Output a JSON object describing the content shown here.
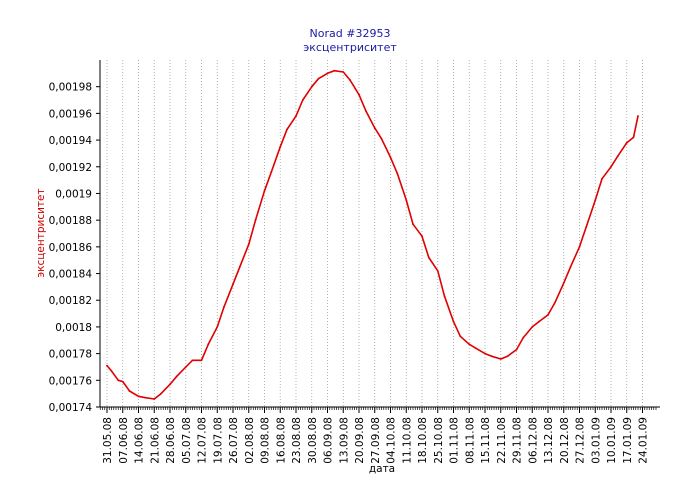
{
  "chart_data": {
    "type": "line",
    "title": "Norad #32953",
    "subtitle": "эксцентриситет",
    "xlabel": "дата",
    "ylabel": "эксцентриситет",
    "ylim": [
      0.00174,
      0.002
    ],
    "y_ticks": [
      0.00174,
      0.00176,
      0.00178,
      0.0018,
      0.00182,
      0.00184,
      0.00186,
      0.00188,
      0.0019,
      0.00192,
      0.00194,
      0.00196,
      0.00198
    ],
    "y_tick_labels": [
      "0,00174",
      "0,00176",
      "0,00178",
      "0,0018",
      "0,00182",
      "0,00184",
      "0,00186",
      "0,00188",
      "0,0019",
      "0,00192",
      "0,00194",
      "0,00196",
      "0,00198"
    ],
    "x_tick_labels": [
      "31.05.08",
      "07.06.08",
      "14.06.08",
      "21.06.08",
      "28.06.08",
      "05.07.08",
      "12.07.08",
      "19.07.08",
      "26.07.08",
      "02.08.08",
      "09.08.08",
      "16.08.08",
      "23.08.08",
      "30.08.08",
      "06.09.08",
      "13.09.08",
      "20.09.08",
      "27.09.08",
      "04.10.08",
      "11.10.08",
      "18.10.08",
      "25.10.08",
      "01.11.08",
      "08.11.08",
      "15.11.08",
      "22.11.08",
      "29.11.08",
      "06.12.08",
      "13.12.08",
      "20.12.08",
      "27.12.08",
      "03.01.09",
      "10.01.09",
      "17.01.09",
      "24.01.09"
    ],
    "grid": "vertical dotted",
    "colors": {
      "line": "#e00000",
      "title": "#1a1aa6",
      "ylabel": "#cc0000",
      "grid": "#a0a0a0"
    },
    "series": [
      {
        "x": [
          "31.05.08",
          "02.06.08",
          "05.06.08",
          "07.06.08",
          "10.06.08",
          "14.06.08",
          "17.06.08",
          "21.06.08",
          "24.06.08",
          "28.06.08",
          "01.07.08",
          "05.07.08",
          "08.07.08",
          "12.07.08",
          "15.07.08",
          "19.07.08",
          "22.07.08",
          "26.07.08",
          "29.07.08",
          "02.08.08",
          "05.08.08",
          "09.08.08",
          "12.08.08",
          "16.08.08",
          "19.08.08",
          "23.08.08",
          "26.08.08",
          "30.08.08",
          "02.09.08",
          "06.09.08",
          "09.09.08",
          "13.09.08",
          "16.09.08",
          "20.09.08",
          "23.09.08",
          "27.09.08",
          "30.09.08",
          "04.10.08",
          "07.10.08",
          "11.10.08",
          "14.10.08",
          "18.10.08",
          "21.10.08",
          "25.10.08",
          "28.10.08",
          "01.11.08",
          "04.11.08",
          "08.11.08",
          "11.11.08",
          "15.11.08",
          "18.11.08",
          "22.11.08",
          "25.11.08",
          "29.11.08",
          "02.12.08",
          "06.12.08",
          "09.12.08",
          "13.12.08",
          "16.12.08",
          "20.12.08",
          "23.12.08",
          "27.12.08",
          "30.12.08",
          "03.01.09",
          "06.01.09",
          "10.01.09",
          "13.01.09",
          "17.01.09",
          "20.01.09",
          "22.01.09"
        ],
        "values": [
          0.001771,
          0.001767,
          0.00176,
          0.001759,
          0.001752,
          0.001748,
          0.001747,
          0.001746,
          0.00175,
          0.001757,
          0.001763,
          0.00177,
          0.001775,
          0.001775,
          0.001787,
          0.0018,
          0.001815,
          0.001832,
          0.001845,
          0.001862,
          0.00188,
          0.001902,
          0.001916,
          0.001935,
          0.001948,
          0.001958,
          0.00197,
          0.00198,
          0.001986,
          0.00199,
          0.001992,
          0.001991,
          0.001985,
          0.001974,
          0.001962,
          0.001949,
          0.001941,
          0.001927,
          0.001915,
          0.001895,
          0.001877,
          0.001868,
          0.001852,
          0.001842,
          0.001823,
          0.001804,
          0.001793,
          0.001787,
          0.001784,
          0.00178,
          0.001778,
          0.001776,
          0.001778,
          0.001783,
          0.001792,
          0.0018,
          0.001804,
          0.001809,
          0.001818,
          0.001833,
          0.001845,
          0.00186,
          0.001875,
          0.001895,
          0.001911,
          0.00192,
          0.001928,
          0.001938,
          0.001942,
          0.001958
        ]
      }
    ]
  }
}
